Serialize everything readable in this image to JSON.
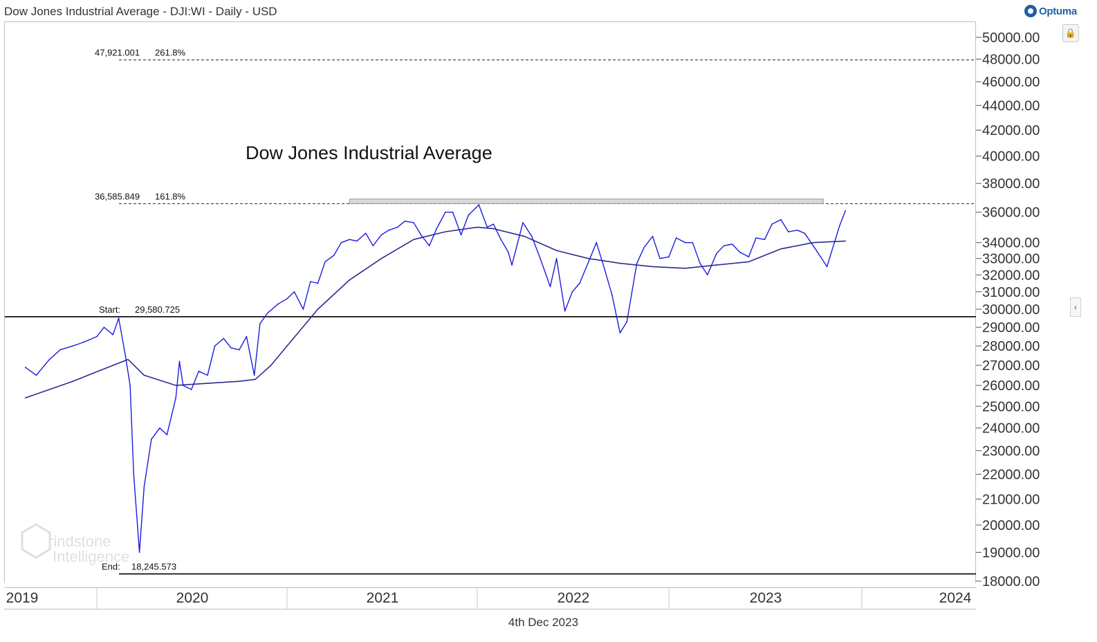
{
  "header": {
    "title": "Dow Jones Industrial Average - DJI:WI - Daily - USD"
  },
  "logo": {
    "text": "Optuma"
  },
  "footer": {
    "date": "4th Dec 2023"
  },
  "watermark": {
    "line1": "rindstone",
    "line2": "Intelligence"
  },
  "colors": {
    "price": "#1a1ae0",
    "ma": "#2b2b8f",
    "level": "#000000",
    "grid_dash": "#222222",
    "band": "#d9d9d9"
  },
  "icons": {
    "lock": "lock-icon",
    "collapse": "chevron-left-icon"
  },
  "chart_data": {
    "type": "line",
    "title": "Dow Jones Industrial Average",
    "ylim": [
      18000,
      50000
    ],
    "yticks": [
      18000,
      19000,
      20000,
      21000,
      22000,
      23000,
      24000,
      25000,
      26000,
      27000,
      28000,
      29000,
      30000,
      31000,
      32000,
      33000,
      34000,
      36000,
      38000,
      40000,
      42000,
      44000,
      46000,
      48000,
      50000
    ],
    "ytick_labels": [
      "18000.00",
      "19000.00",
      "20000.00",
      "21000.00",
      "22000.00",
      "23000.00",
      "24000.00",
      "25000.00",
      "26000.00",
      "27000.00",
      "28000.00",
      "29000.00",
      "30000.00",
      "31000.00",
      "32000.00",
      "33000.00",
      "34000.00",
      "36000.00",
      "38000.00",
      "40000.00",
      "42000.00",
      "44000.00",
      "46000.00",
      "48000.00",
      "50000.00"
    ],
    "xlabels": [
      "2019",
      "2020",
      "2021",
      "2022",
      "2023",
      "2024"
    ],
    "series": [
      {
        "role": "price",
        "x": [
          "2019-10-01",
          "2019-10-15",
          "2019-11-01",
          "2019-11-15",
          "2019-12-01",
          "2019-12-15",
          "2020-01-01",
          "2020-01-15",
          "2020-02-01",
          "2020-02-12",
          "2020-02-25",
          "2020-03-05",
          "2020-03-12",
          "2020-03-23",
          "2020-04-01",
          "2020-04-15",
          "2020-05-01",
          "2020-05-15",
          "2020-06-01",
          "2020-06-08",
          "2020-06-15",
          "2020-07-01",
          "2020-07-15",
          "2020-08-01",
          "2020-08-15",
          "2020-09-01",
          "2020-09-15",
          "2020-10-01",
          "2020-10-15",
          "2020-10-30",
          "2020-11-10",
          "2020-11-25",
          "2020-12-15",
          "2021-01-01",
          "2021-01-15",
          "2021-02-01",
          "2021-02-15",
          "2021-03-01",
          "2021-03-15",
          "2021-04-01",
          "2021-04-15",
          "2021-05-01",
          "2021-05-15",
          "2021-06-01",
          "2021-06-15",
          "2021-07-01",
          "2021-07-15",
          "2021-08-01",
          "2021-08-15",
          "2021-09-01",
          "2021-09-15",
          "2021-10-01",
          "2021-10-15",
          "2021-11-01",
          "2021-11-15",
          "2021-12-01",
          "2021-12-15",
          "2022-01-04",
          "2022-01-20",
          "2022-02-01",
          "2022-02-15",
          "2022-03-01",
          "2022-03-08",
          "2022-03-29",
          "2022-04-15",
          "2022-05-01",
          "2022-05-20",
          "2022-06-01",
          "2022-06-17",
          "2022-07-01",
          "2022-07-15",
          "2022-08-01",
          "2022-08-16",
          "2022-09-01",
          "2022-09-15",
          "2022-09-30",
          "2022-10-13",
          "2022-11-01",
          "2022-11-15",
          "2022-12-01",
          "2022-12-15",
          "2023-01-01",
          "2023-01-15",
          "2023-02-01",
          "2023-02-15",
          "2023-03-01",
          "2023-03-15",
          "2023-04-01",
          "2023-04-15",
          "2023-05-01",
          "2023-05-15",
          "2023-06-01",
          "2023-06-15",
          "2023-07-01",
          "2023-07-15",
          "2023-08-01",
          "2023-08-15",
          "2023-09-01",
          "2023-09-15",
          "2023-10-01",
          "2023-10-15",
          "2023-10-27",
          "2023-11-10",
          "2023-11-20",
          "2023-12-01"
        ],
        "values": [
          26900,
          26500,
          27300,
          27800,
          28000,
          28200,
          28500,
          29000,
          28600,
          29500,
          27500,
          26000,
          22000,
          19000,
          21500,
          23500,
          24000,
          23700,
          25400,
          27200,
          26000,
          25800,
          26700,
          26500,
          28000,
          28400,
          27900,
          27800,
          28500,
          26500,
          29200,
          29800,
          30300,
          30600,
          31000,
          30000,
          31600,
          31500,
          32800,
          33200,
          34000,
          34200,
          34100,
          34600,
          33800,
          34500,
          34800,
          35000,
          35400,
          35300,
          34500,
          33800,
          34900,
          36000,
          36000,
          34500,
          35800,
          36500,
          35000,
          35200,
          34200,
          33400,
          32600,
          35300,
          34400,
          33000,
          31300,
          33000,
          29900,
          31000,
          31500,
          32800,
          34000,
          32300,
          30800,
          28700,
          29300,
          32700,
          33700,
          34400,
          33000,
          33100,
          34300,
          34000,
          34000,
          32700,
          32000,
          33300,
          33800,
          33900,
          33400,
          33100,
          34300,
          34200,
          35200,
          35500,
          34700,
          34800,
          34600,
          33800,
          33100,
          32500,
          34000,
          35100,
          36100
        ]
      },
      {
        "role": "ma",
        "x": [
          "2019-10-01",
          "2019-12-01",
          "2020-02-01",
          "2020-03-01",
          "2020-04-01",
          "2020-06-01",
          "2020-08-01",
          "2020-10-01",
          "2020-11-01",
          "2020-12-01",
          "2021-01-01",
          "2021-03-01",
          "2021-05-01",
          "2021-07-01",
          "2021-09-01",
          "2021-11-01",
          "2022-01-01",
          "2022-02-01",
          "2022-04-01",
          "2022-06-01",
          "2022-08-01",
          "2022-10-01",
          "2022-12-01",
          "2023-02-01",
          "2023-04-01",
          "2023-06-01",
          "2023-08-01",
          "2023-10-01",
          "2023-12-01"
        ],
        "values": [
          25400,
          26200,
          27000,
          27300,
          26500,
          26000,
          26100,
          26200,
          26300,
          27000,
          28000,
          30000,
          31700,
          33000,
          34200,
          34700,
          35000,
          34900,
          34400,
          33500,
          33000,
          32700,
          32500,
          32400,
          32600,
          32800,
          33600,
          34000,
          34100
        ]
      }
    ],
    "levels": [
      {
        "label": "47,921.001",
        "pct": "261.8%",
        "value": 47921.001
      },
      {
        "label": "36,585.849",
        "pct": "161.8%",
        "value": 36585.849
      },
      {
        "label": "Start:",
        "pct": "29,580.725",
        "value": 29580.725
      },
      {
        "label": "End:",
        "pct": "18,245.573",
        "value": 18245.573
      }
    ],
    "resistance_band": {
      "from": 36585.849,
      "to": 36900,
      "x_start": "2021-05-01",
      "x_end": "2023-10-20"
    },
    "grid": false,
    "legend": "none"
  }
}
